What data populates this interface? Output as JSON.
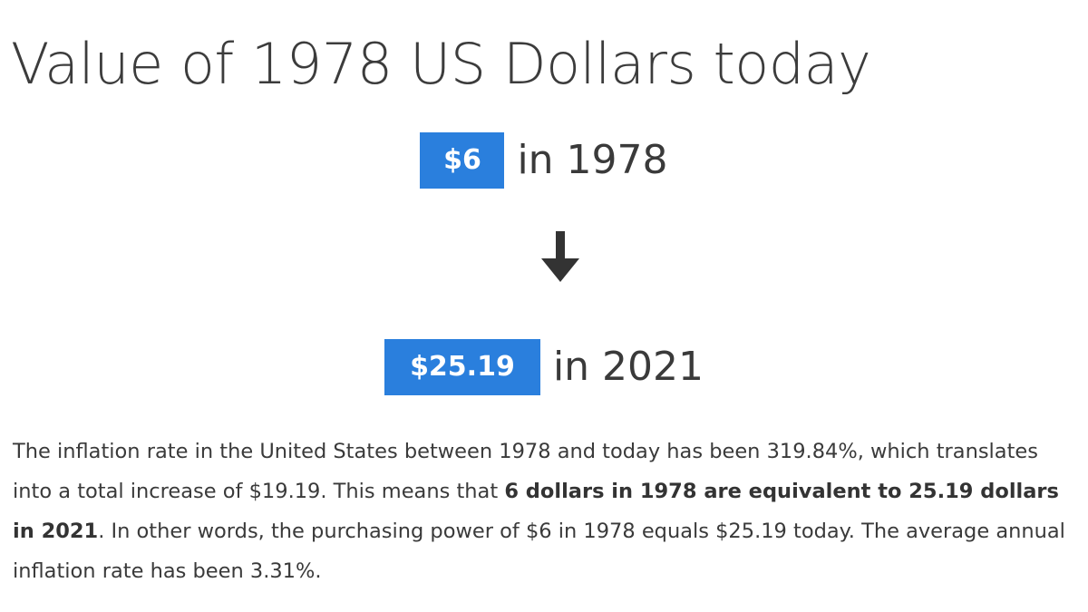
{
  "header": {
    "title": "Value of 1978 US Dollars today"
  },
  "conversion": {
    "start_amount": "$6",
    "start_year_text": "in 1978",
    "end_amount": "$25.19",
    "end_year_text": "in 2021",
    "arrow_icon": "arrow-down-icon"
  },
  "description": {
    "part1": "The inflation rate in the United States between 1978 and today has been 319.84%, which translates into a total increase of $19.19. This means that ",
    "bold": "6 dollars in 1978 are equivalent to 25.19 dollars in 2021",
    "part2": ". In other words, the purchasing power of $6 in 1978 equals $25.19 today. The average annual inflation rate has been 3.31%."
  },
  "colors": {
    "badge_background": "#2a7fdd",
    "badge_text": "#ffffff",
    "text": "#3a3a3a"
  }
}
